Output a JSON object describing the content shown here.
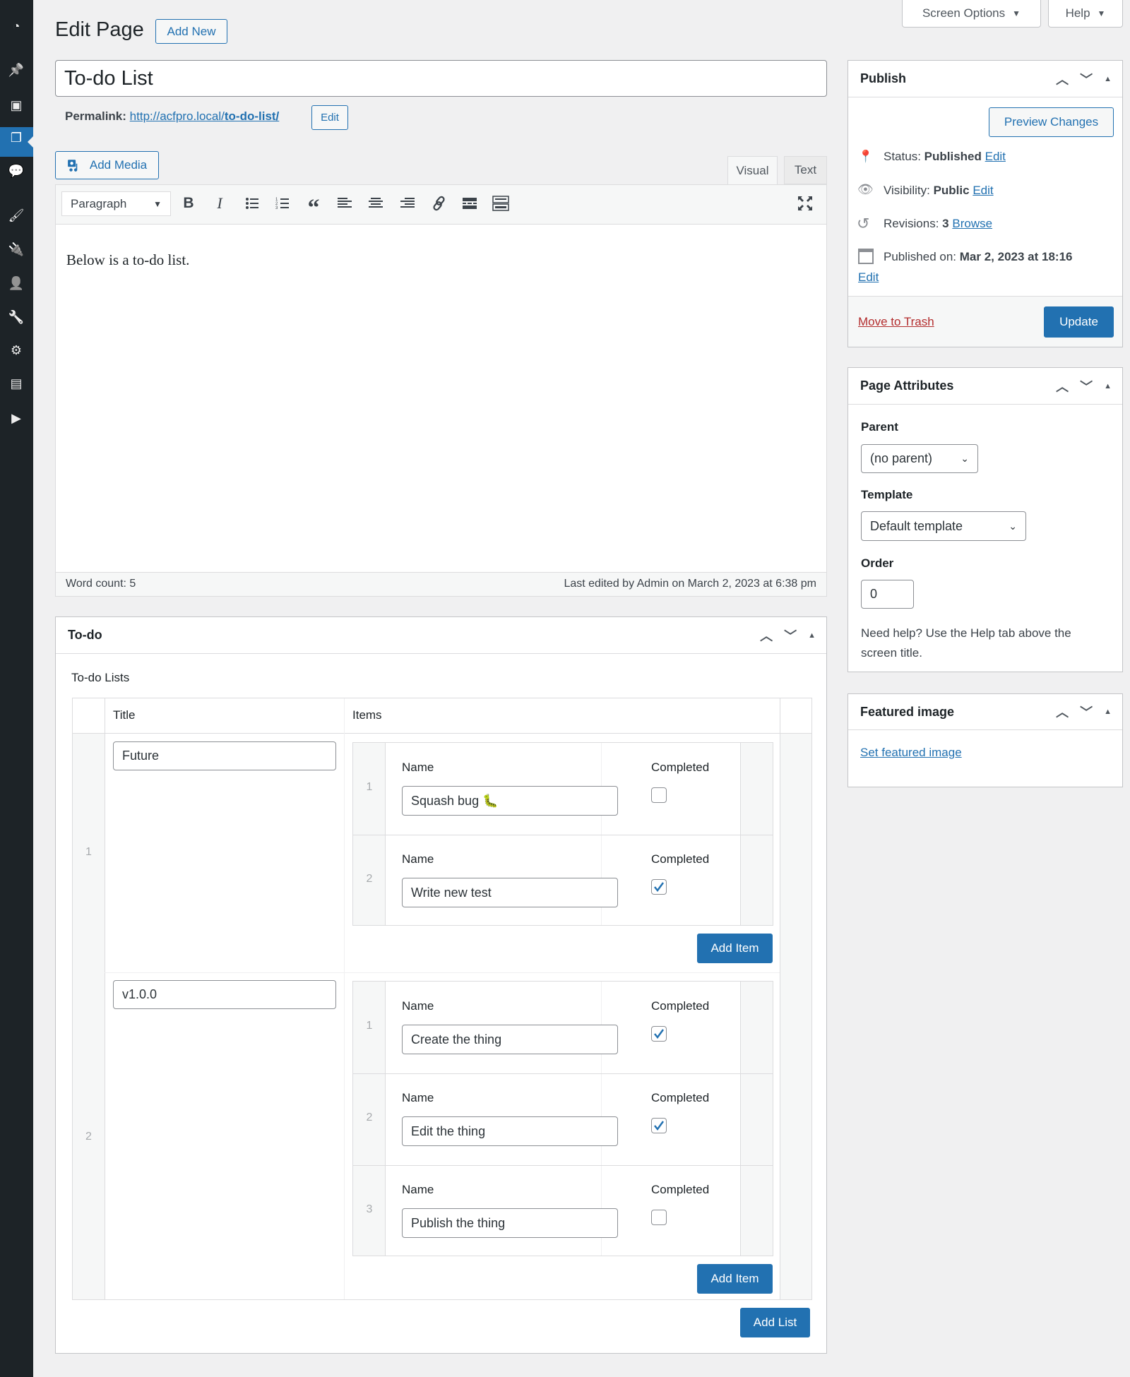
{
  "header": {
    "title": "Edit Page",
    "add_new": "Add New",
    "screen_options": "Screen Options",
    "help": "Help"
  },
  "sidebar": {
    "items": [
      {
        "icon": "dashboard-icon"
      },
      {
        "icon": "posts-pin-icon"
      },
      {
        "icon": "media-icon"
      },
      {
        "icon": "pages-icon",
        "active": true
      },
      {
        "icon": "comments-icon"
      },
      {
        "icon": "appearance-brush-icon"
      },
      {
        "icon": "plugins-icon"
      },
      {
        "icon": "users-icon"
      },
      {
        "icon": "tools-wrench-icon"
      },
      {
        "icon": "settings-icon"
      },
      {
        "icon": "custom-fields-icon"
      },
      {
        "icon": "collapse-play-icon"
      }
    ]
  },
  "post": {
    "title": "To-do List",
    "permalink_label": "Permalink:",
    "permalink_base": "http://acfpro.local/",
    "permalink_slug": "to-do-list/",
    "permalink_edit": "Edit"
  },
  "editor": {
    "add_media": "Add Media",
    "tabs": [
      "Visual",
      "Text"
    ],
    "active_tab": "Visual",
    "format": "Paragraph",
    "content": "Below is a to-do list.",
    "word_count": "Word count: 5",
    "last_edited": "Last edited by Admin on March 2, 2023 at 6:38 pm"
  },
  "todo": {
    "box_title": "To-do",
    "field_label": "To-do Lists",
    "col_title": "Title",
    "col_items": "Items",
    "item_name_label": "Name",
    "item_completed_label": "Completed",
    "add_item": "Add Item",
    "add_list": "Add List",
    "lists": [
      {
        "index": "1",
        "title": "Future",
        "items": [
          {
            "index": "1",
            "name": "Squash bug 🐛",
            "completed": false
          },
          {
            "index": "2",
            "name": "Write new test",
            "completed": true
          }
        ]
      },
      {
        "index": "2",
        "title": "v1.0.0",
        "items": [
          {
            "index": "1",
            "name": "Create the thing",
            "completed": true
          },
          {
            "index": "2",
            "name": "Edit the thing",
            "completed": true
          },
          {
            "index": "3",
            "name": "Publish the thing",
            "completed": false
          }
        ]
      }
    ]
  },
  "publish": {
    "title": "Publish",
    "preview": "Preview Changes",
    "status_label": "Status:",
    "status": "Published",
    "visibility_label": "Visibility:",
    "visibility": "Public",
    "revisions_label": "Revisions:",
    "revisions": "3",
    "browse": "Browse",
    "published_label": "Published on:",
    "published_on": "Mar 2, 2023 at 18:16",
    "edit": "Edit",
    "trash": "Move to Trash",
    "update": "Update"
  },
  "attributes": {
    "title": "Page Attributes",
    "parent_label": "Parent",
    "parent": "(no parent)",
    "template_label": "Template",
    "template": "Default template",
    "order_label": "Order",
    "order": "0",
    "help": "Need help? Use the Help tab above the screen title."
  },
  "featured": {
    "title": "Featured image",
    "link": "Set featured image"
  },
  "colors": {
    "accent": "#2271b1",
    "sidebar": "#1d2327",
    "danger": "#b32d2e",
    "background": "#f0f0f1"
  }
}
